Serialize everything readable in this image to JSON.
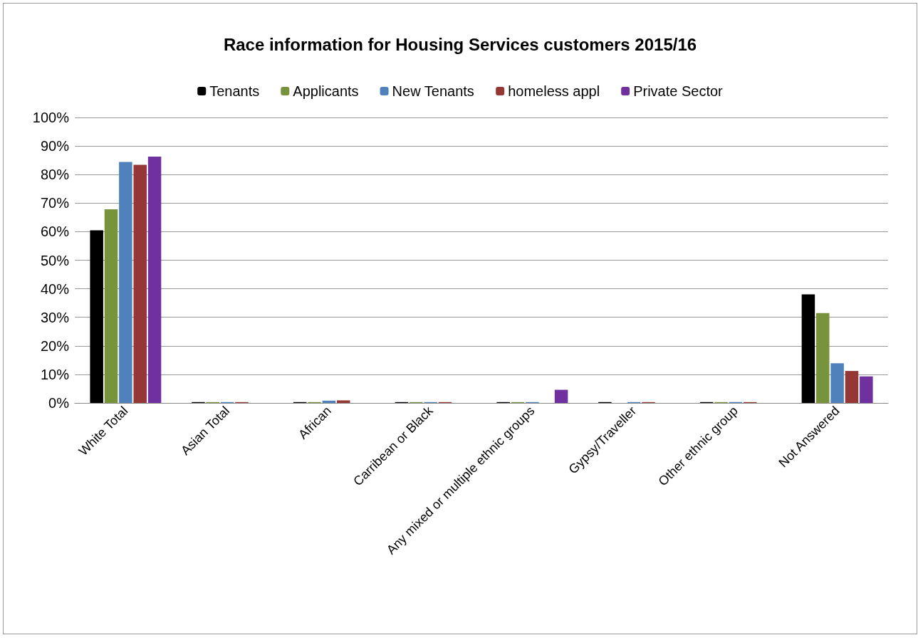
{
  "chart_data": {
    "type": "bar",
    "title": "Race information for Housing Services customers 2015/16",
    "categories": [
      "White Total",
      "Asian Total",
      "African",
      "Carribean or Black",
      "Any mixed or multiple ethnic groups",
      "Gypsy/Traveller",
      "Other ethnic group",
      "Not Answered"
    ],
    "series": [
      {
        "name": "Tenants",
        "color": "#000000",
        "values": [
          60.5,
          0.3,
          0.3,
          0.3,
          0.3,
          0.3,
          0.3,
          38
        ]
      },
      {
        "name": "Applicants",
        "color": "#77933c",
        "values": [
          67.8,
          0.3,
          0.3,
          0.3,
          0.3,
          0,
          0.3,
          31.5
        ]
      },
      {
        "name": "New Tenants",
        "color": "#4f81bd",
        "values": [
          84.4,
          0.3,
          0.8,
          0.3,
          0.3,
          0.3,
          0.3,
          13.9
        ]
      },
      {
        "name": "homeless appl",
        "color": "#953735",
        "values": [
          83.4,
          0.3,
          0.9,
          0.3,
          0,
          0.3,
          0.3,
          11.2
        ]
      },
      {
        "name": "Private Sector",
        "color": "#7030a0",
        "values": [
          86.3,
          0,
          0,
          0,
          4.6,
          0,
          0,
          9.3
        ]
      }
    ],
    "ylim": [
      0,
      100
    ],
    "yticks": [
      {
        "value": 0,
        "label": "0%"
      },
      {
        "value": 10,
        "label": "10%"
      },
      {
        "value": 20,
        "label": "20%"
      },
      {
        "value": 30,
        "label": "30%"
      },
      {
        "value": 40,
        "label": "40%"
      },
      {
        "value": 50,
        "label": "50%"
      },
      {
        "value": 60,
        "label": "60%"
      },
      {
        "value": 70,
        "label": "70%"
      },
      {
        "value": 80,
        "label": "80%"
      },
      {
        "value": 90,
        "label": "90%"
      },
      {
        "value": 100,
        "label": "100%"
      }
    ],
    "grid": "y",
    "legend": "top"
  }
}
